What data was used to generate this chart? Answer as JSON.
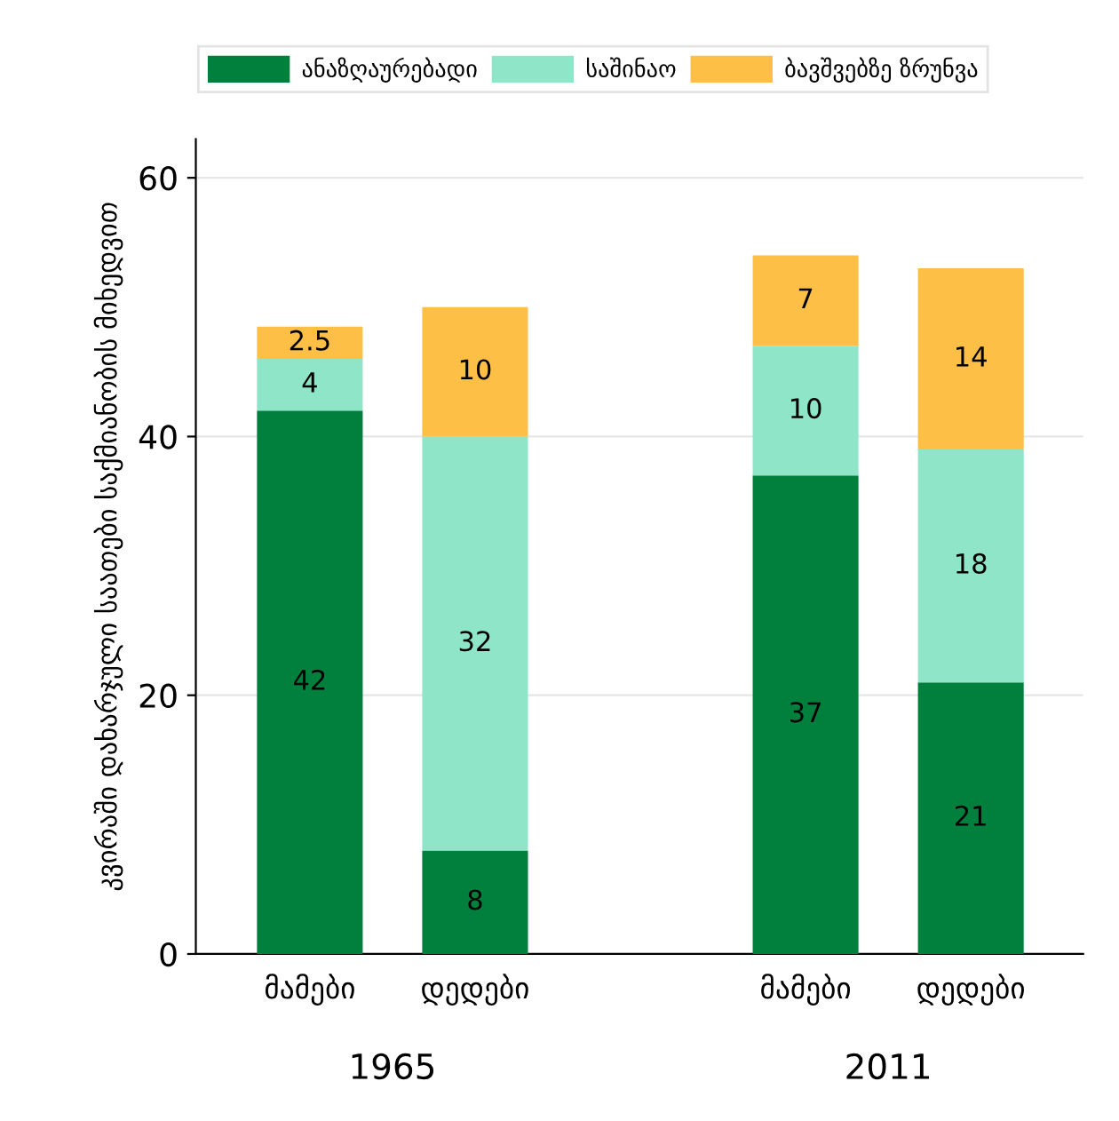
{
  "chart_data": {
    "type": "bar",
    "stacked": true,
    "ylabel": "კვირაში დახარჯული საათები საქმიანობის მიხედვით",
    "categories": [
      "მამები",
      "დედები",
      null,
      "მამები",
      "დედები"
    ],
    "series": [
      {
        "name": "ანაზღაურებადი",
        "color": "#007f3d",
        "values": [
          42,
          8,
          null,
          37,
          21
        ]
      },
      {
        "name": "საშინაო",
        "color": "#8ee5c8",
        "values": [
          4,
          32,
          null,
          10,
          18
        ]
      },
      {
        "name": "ბავშვებზე ზრუნვა",
        "color": "#fdbf46",
        "values": [
          2.5,
          10,
          null,
          7,
          14
        ]
      }
    ],
    "annotations": [
      "1965",
      "2011"
    ],
    "ylim": [
      0,
      63
    ],
    "yticks": [
      0,
      20,
      40,
      60
    ],
    "grid": "y",
    "legend": "top",
    "data_labels": true
  }
}
